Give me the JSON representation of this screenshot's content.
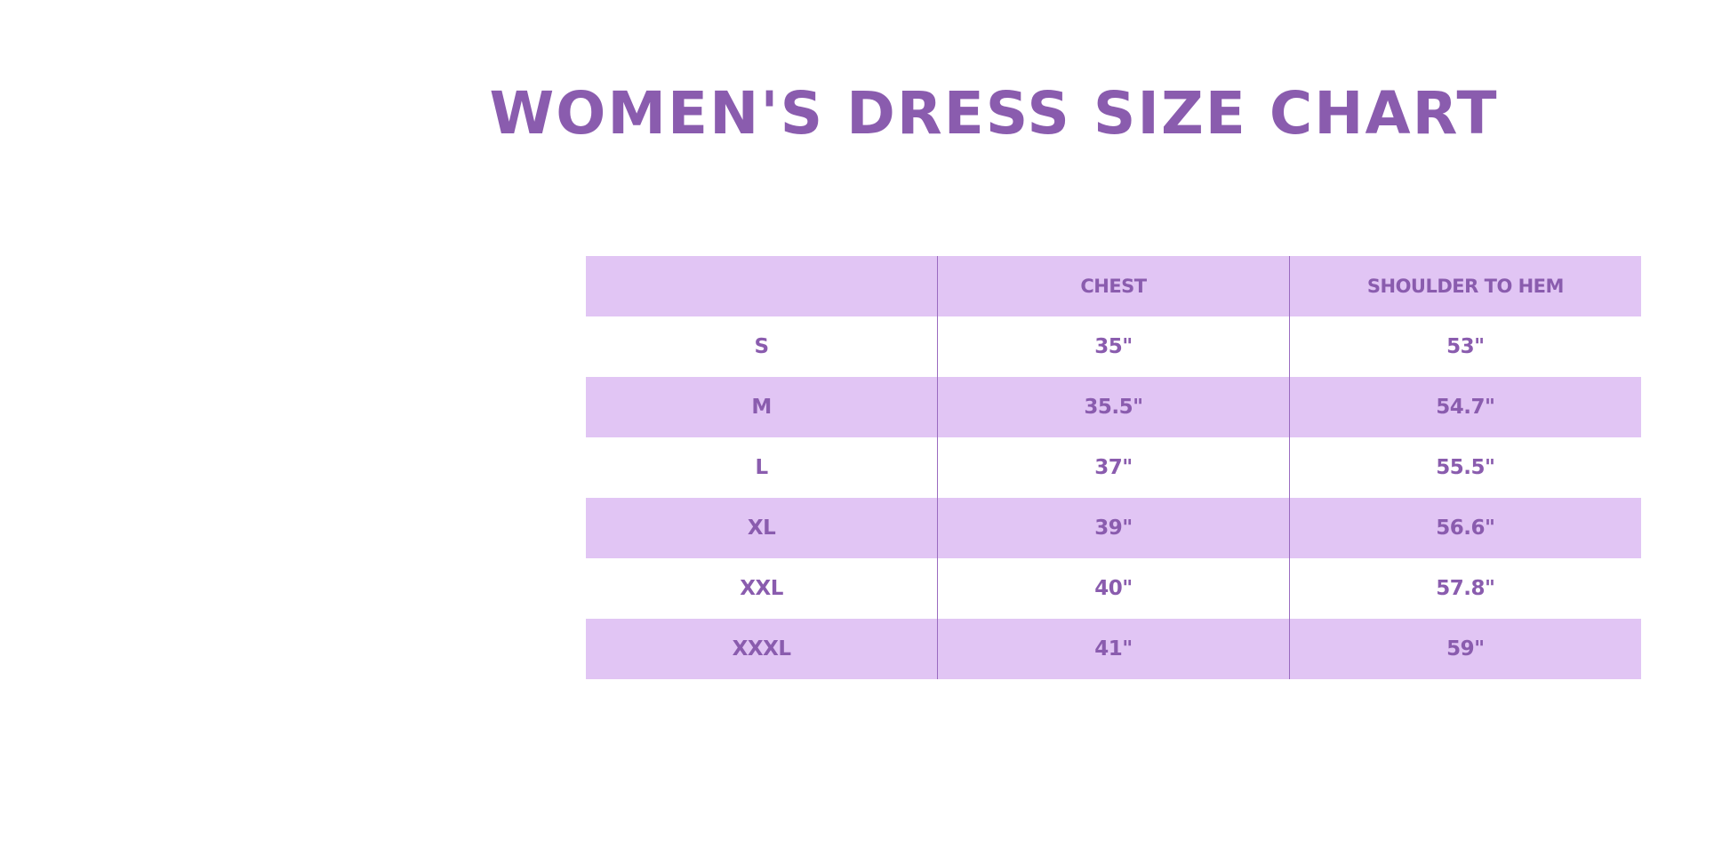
{
  "title": "WOMEN'S DRESS SIZE CHART",
  "colors": {
    "text": "#8a5cae",
    "row_shade": "#e1c5f4",
    "background": "#ffffff"
  },
  "table": {
    "headers": [
      "",
      "CHEST",
      "SHOULDER TO HEM"
    ],
    "rows": [
      [
        "S",
        "35\"",
        "53\""
      ],
      [
        "M",
        "35.5\"",
        "54.7\""
      ],
      [
        "L",
        "37\"",
        "55.5\""
      ],
      [
        "XL",
        "39\"",
        "56.6\""
      ],
      [
        "XXL",
        "40\"",
        "57.8\""
      ],
      [
        "XXXL",
        "41\"",
        "59\""
      ]
    ]
  }
}
